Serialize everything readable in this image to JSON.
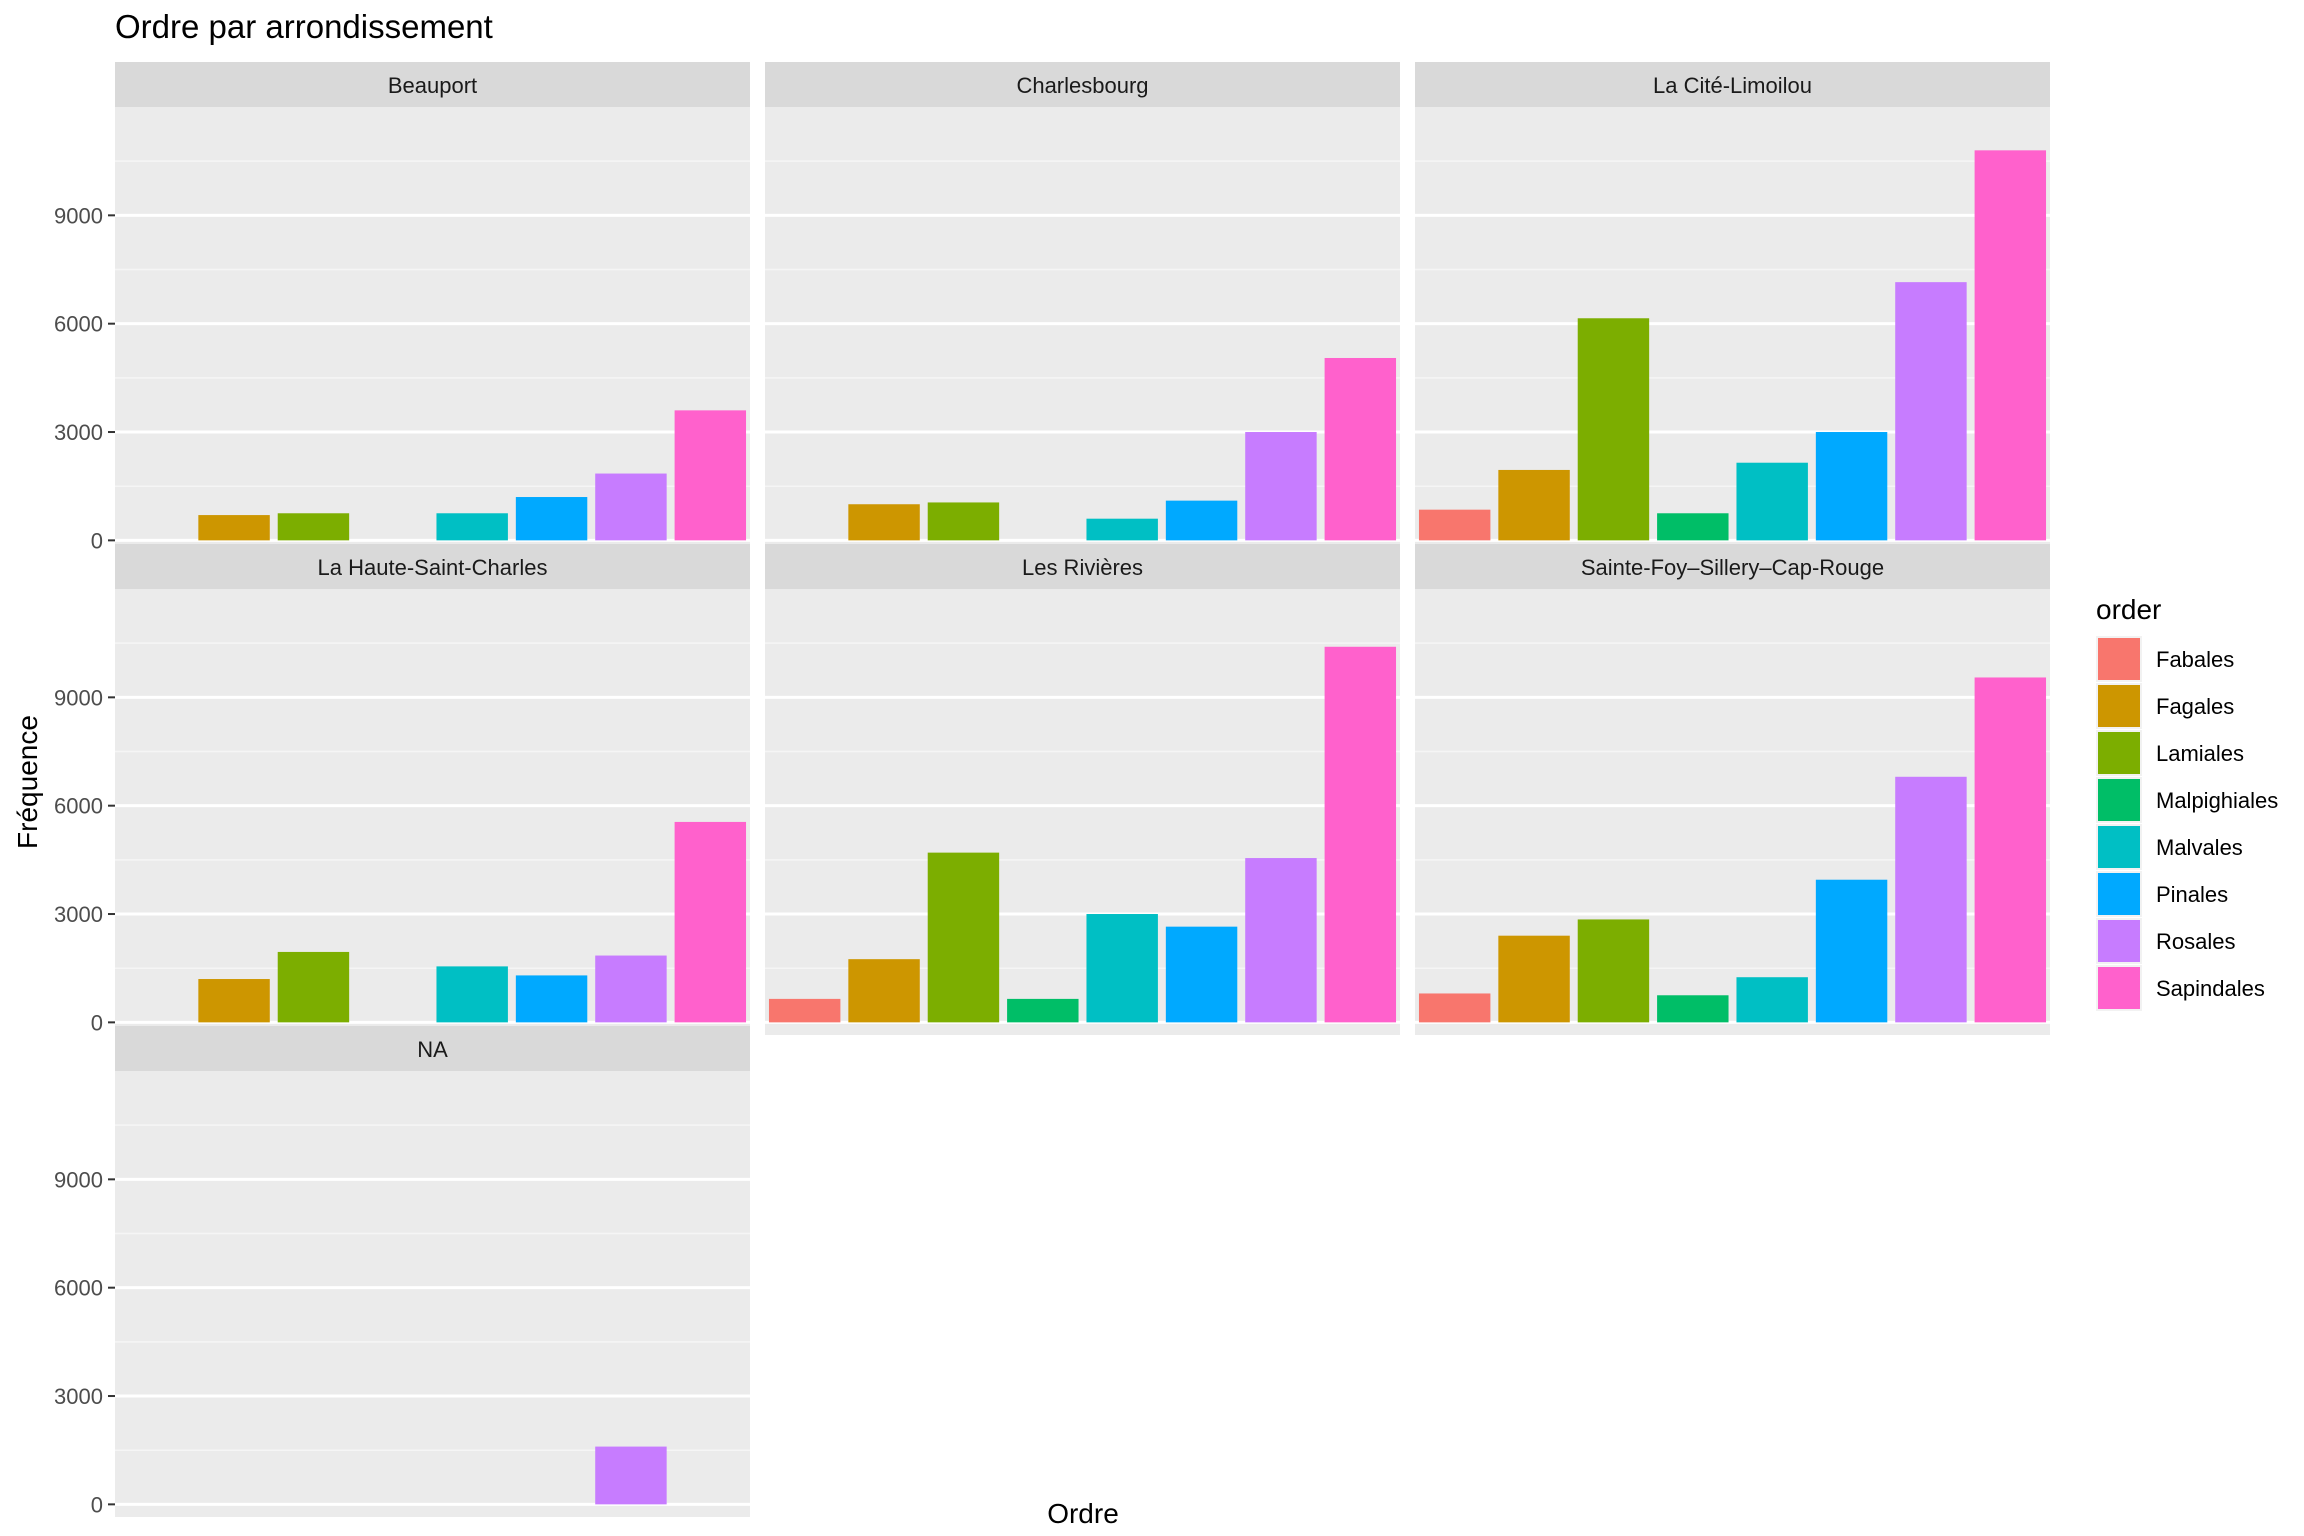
{
  "chart_data": {
    "type": "bar",
    "title": "Ordre par arrondissement",
    "xlabel": "Ordre",
    "ylabel": "Fréquence",
    "ylim": [
      -350,
      12000
    ],
    "y_ticks": [
      0,
      3000,
      6000,
      9000
    ],
    "y_tick_labels": [
      "0",
      "3000",
      "6000",
      "9000"
    ],
    "categories": [
      "Fabales",
      "Fagales",
      "Lamiales",
      "Malpighiales",
      "Malvales",
      "Pinales",
      "Rosales",
      "Sapindales"
    ],
    "colors": [
      "#F8766D",
      "#CD9600",
      "#7CAE00",
      "#00BE67",
      "#00BFC4",
      "#00A9FF",
      "#C77CFF",
      "#FF61CC"
    ],
    "legend": {
      "title": "order",
      "position": "right"
    },
    "grid": true,
    "facets": [
      {
        "name": "Beauport",
        "values": [
          null,
          700,
          750,
          null,
          750,
          1200,
          1850,
          3600
        ]
      },
      {
        "name": "Charlesbourg",
        "values": [
          null,
          1000,
          1050,
          null,
          600,
          1100,
          3000,
          5050
        ]
      },
      {
        "name": "La Cité-Limoilou",
        "values": [
          850,
          1950,
          6150,
          750,
          2150,
          3000,
          7150,
          10800
        ]
      },
      {
        "name": "La Haute-Saint-Charles",
        "values": [
          null,
          1200,
          1950,
          null,
          1550,
          1300,
          1850,
          5550
        ]
      },
      {
        "name": "Les Rivières",
        "values": [
          650,
          1750,
          4700,
          650,
          3000,
          2650,
          4550,
          10400
        ]
      },
      {
        "name": "Sainte-Foy–Sillery–Cap-Rouge",
        "values": [
          800,
          2400,
          2850,
          750,
          1250,
          3950,
          6800,
          9550
        ]
      },
      {
        "name": "NA",
        "values": [
          null,
          null,
          null,
          null,
          null,
          null,
          1600,
          null
        ]
      }
    ]
  }
}
